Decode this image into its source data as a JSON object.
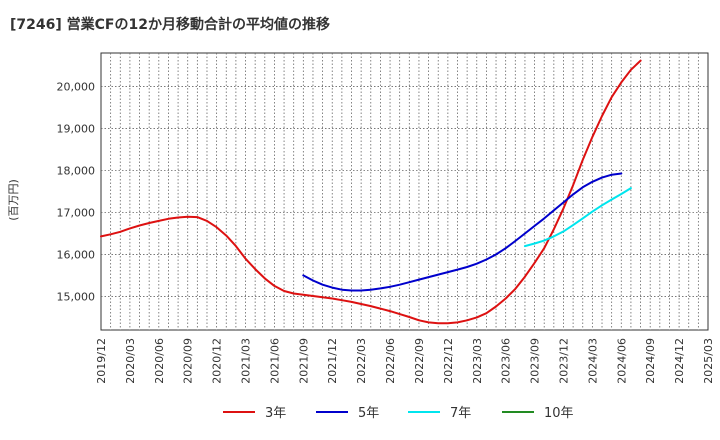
{
  "chart_data": {
    "type": "line",
    "title": "[7246]  営業CFの12か月移動合計の平均値の推移",
    "ylabel": "(百万円)",
    "xlabel": "",
    "ylim": [
      14200,
      20800
    ],
    "y_ticks": [
      15000,
      16000,
      17000,
      18000,
      19000,
      20000
    ],
    "y_tick_labels": [
      "15,000",
      "16,000",
      "17,000",
      "18,000",
      "19,000",
      "20,000"
    ],
    "x_tick_labels": [
      "2019/12",
      "2020/03",
      "2020/06",
      "2020/09",
      "2020/12",
      "2021/03",
      "2021/06",
      "2021/09",
      "2021/12",
      "2022/03",
      "2022/06",
      "2022/09",
      "2022/12",
      "2023/03",
      "2023/06",
      "2023/09",
      "2023/12",
      "2024/03",
      "2024/06",
      "2024/09",
      "2024/12",
      "2025/03"
    ],
    "grid": true,
    "legend_position": "bottom",
    "series": [
      {
        "name": "3年",
        "color": "#dd1111",
        "points": [
          [
            "2019/12",
            16430
          ],
          [
            "2020/01",
            16480
          ],
          [
            "2020/02",
            16540
          ],
          [
            "2020/03",
            16620
          ],
          [
            "2020/04",
            16690
          ],
          [
            "2020/05",
            16750
          ],
          [
            "2020/06",
            16800
          ],
          [
            "2020/07",
            16850
          ],
          [
            "2020/08",
            16880
          ],
          [
            "2020/09",
            16900
          ],
          [
            "2020/10",
            16890
          ],
          [
            "2020/11",
            16800
          ],
          [
            "2020/12",
            16650
          ],
          [
            "2021/01",
            16450
          ],
          [
            "2021/02",
            16200
          ],
          [
            "2021/03",
            15900
          ],
          [
            "2021/04",
            15650
          ],
          [
            "2021/05",
            15430
          ],
          [
            "2021/06",
            15250
          ],
          [
            "2021/07",
            15130
          ],
          [
            "2021/08",
            15070
          ],
          [
            "2021/09",
            15040
          ],
          [
            "2021/10",
            15010
          ],
          [
            "2021/11",
            14980
          ],
          [
            "2021/12",
            14950
          ],
          [
            "2022/01",
            14910
          ],
          [
            "2022/02",
            14870
          ],
          [
            "2022/03",
            14820
          ],
          [
            "2022/04",
            14770
          ],
          [
            "2022/05",
            14710
          ],
          [
            "2022/06",
            14650
          ],
          [
            "2022/07",
            14580
          ],
          [
            "2022/08",
            14510
          ],
          [
            "2022/09",
            14430
          ],
          [
            "2022/10",
            14380
          ],
          [
            "2022/11",
            14360
          ],
          [
            "2022/12",
            14360
          ],
          [
            "2023/01",
            14380
          ],
          [
            "2023/02",
            14430
          ],
          [
            "2023/03",
            14500
          ],
          [
            "2023/04",
            14600
          ],
          [
            "2023/05",
            14760
          ],
          [
            "2023/06",
            14950
          ],
          [
            "2023/07",
            15180
          ],
          [
            "2023/08",
            15470
          ],
          [
            "2023/09",
            15800
          ],
          [
            "2023/10",
            16150
          ],
          [
            "2023/11",
            16600
          ],
          [
            "2023/12",
            17100
          ],
          [
            "2024/01",
            17650
          ],
          [
            "2024/02",
            18250
          ],
          [
            "2024/03",
            18800
          ],
          [
            "2024/04",
            19300
          ],
          [
            "2024/05",
            19750
          ],
          [
            "2024/06",
            20100
          ],
          [
            "2024/07",
            20400
          ],
          [
            "2024/08",
            20620
          ]
        ]
      },
      {
        "name": "5年",
        "color": "#0000cc",
        "points": [
          [
            "2021/09",
            15500
          ],
          [
            "2021/10",
            15380
          ],
          [
            "2021/11",
            15280
          ],
          [
            "2021/12",
            15210
          ],
          [
            "2022/01",
            15160
          ],
          [
            "2022/02",
            15140
          ],
          [
            "2022/03",
            15140
          ],
          [
            "2022/04",
            15160
          ],
          [
            "2022/05",
            15190
          ],
          [
            "2022/06",
            15230
          ],
          [
            "2022/07",
            15280
          ],
          [
            "2022/08",
            15340
          ],
          [
            "2022/09",
            15400
          ],
          [
            "2022/10",
            15460
          ],
          [
            "2022/11",
            15520
          ],
          [
            "2022/12",
            15580
          ],
          [
            "2023/01",
            15640
          ],
          [
            "2023/02",
            15700
          ],
          [
            "2023/03",
            15780
          ],
          [
            "2023/04",
            15880
          ],
          [
            "2023/05",
            16000
          ],
          [
            "2023/06",
            16150
          ],
          [
            "2023/07",
            16320
          ],
          [
            "2023/08",
            16500
          ],
          [
            "2023/09",
            16680
          ],
          [
            "2023/10",
            16860
          ],
          [
            "2023/11",
            17050
          ],
          [
            "2023/12",
            17240
          ],
          [
            "2024/01",
            17430
          ],
          [
            "2024/02",
            17600
          ],
          [
            "2024/03",
            17730
          ],
          [
            "2024/04",
            17830
          ],
          [
            "2024/05",
            17900
          ],
          [
            "2024/06",
            17930
          ]
        ]
      },
      {
        "name": "7年",
        "color": "#00e5ee",
        "points": [
          [
            "2023/08",
            16200
          ],
          [
            "2023/09",
            16260
          ],
          [
            "2023/10",
            16330
          ],
          [
            "2023/11",
            16430
          ],
          [
            "2023/12",
            16550
          ],
          [
            "2024/01",
            16700
          ],
          [
            "2024/02",
            16860
          ],
          [
            "2024/03",
            17020
          ],
          [
            "2024/04",
            17170
          ],
          [
            "2024/05",
            17310
          ],
          [
            "2024/06",
            17440
          ],
          [
            "2024/07",
            17580
          ]
        ]
      },
      {
        "name": "10年",
        "color": "#228b22",
        "points": []
      }
    ]
  }
}
